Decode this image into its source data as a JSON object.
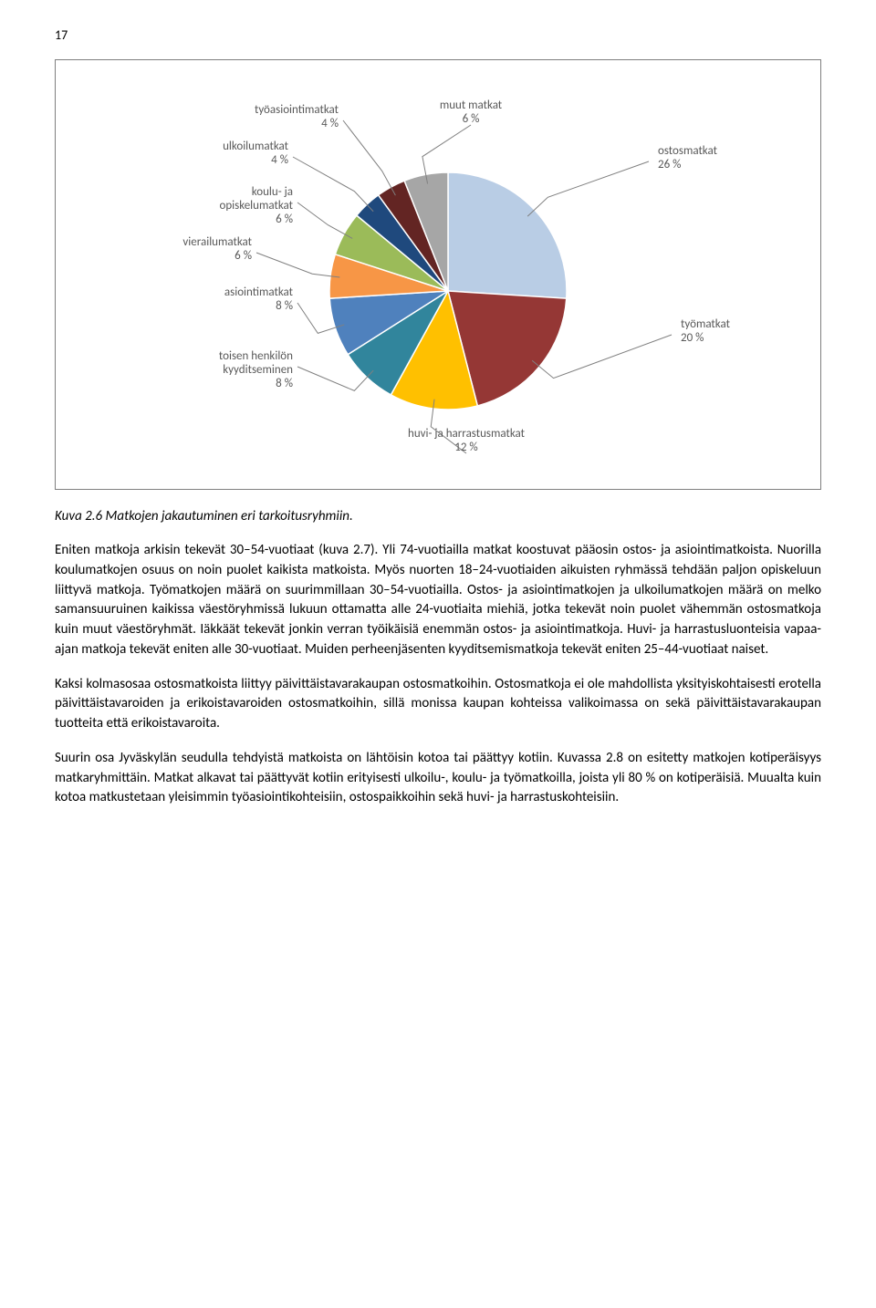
{
  "page_number": "17",
  "chart": {
    "type": "pie",
    "background_color": "#ffffff",
    "slices": [
      {
        "label_line1": "ostosmatkat",
        "label_line2": "26 %",
        "value": 26,
        "color": "#b9cde5"
      },
      {
        "label_line1": "työmatkat",
        "label_line2": "20 %",
        "value": 20,
        "color": "#953735"
      },
      {
        "label_line1": "huvi- ja harrastusmatkat",
        "label_line2": "12 %",
        "value": 12,
        "color": "#ffc000"
      },
      {
        "label_line1": "toisen henkilön",
        "label_line2": "kyyditseminen",
        "label_line3": "8 %",
        "value": 8,
        "color": "#31859c"
      },
      {
        "label_line1": "asiointimatkat",
        "label_line2": "8 %",
        "value": 8,
        "color": "#4f81bd"
      },
      {
        "label_line1": "vierailumatkat",
        "label_line2": "6 %",
        "value": 6,
        "color": "#f79646"
      },
      {
        "label_line1": "koulu- ja",
        "label_line2": "opiskelumatkat",
        "label_line3": "6 %",
        "value": 6,
        "color": "#9bbb59"
      },
      {
        "label_line1": "ulkoilumatkat",
        "label_line2": "4 %",
        "value": 4,
        "color": "#1f497d"
      },
      {
        "label_line1": "työasiointimatkat",
        "label_line2": "4 %",
        "value": 4,
        "color": "#632523"
      },
      {
        "label_line1": "muut matkat",
        "label_line2": "6 %",
        "value": 6,
        "color": "#a6a6a6"
      }
    ],
    "label_color": "#595959",
    "label_fontsize": 13,
    "leader_line_color": "#808080",
    "radius": 130,
    "start_angle_deg": -90
  },
  "caption": "Kuva 2.6 Matkojen jakautuminen eri tarkoitusryhmiin.",
  "paragraphs": [
    "Eniten matkoja arkisin tekevät 30–54-vuotiaat (kuva 2.7). Yli 74-vuotiailla matkat koostuvat pääosin ostos- ja asiointimatkoista. Nuorilla koulumatkojen osuus on noin puolet kaikista matkoista. Myös nuorten 18–24-vuotiaiden aikuisten ryhmässä tehdään paljon opiskeluun liittyvä matkoja. Työmatkojen määrä on suurimmillaan 30–54-vuotiailla. Ostos- ja asiointimatkojen ja ulkoilumatkojen määrä on melko samansuuruinen kaikissa väestöryhmissä lukuun ottamatta alle 24-vuotiaita miehiä, jotka tekevät noin puolet vähemmän ostosmatkoja kuin muut väestöryhmät. Iäkkäät tekevät jonkin verran työikäisiä enemmän ostos- ja asiointimatkoja. Huvi- ja harrastusluonteisia vapaa-ajan matkoja tekevät eniten alle 30-vuotiaat. Muiden perheenjäsenten kyyditsemismatkoja tekevät eniten 25–44-vuotiaat naiset.",
    "Kaksi kolmasosaa ostosmatkoista liittyy päivittäistavarakaupan ostosmatkoihin. Ostosmatkoja ei ole mahdollista yksityiskohtaisesti erotella päivittäistavaroiden ja erikoistavaroiden ostosmatkoihin, sillä monissa kaupan kohteissa valikoimassa on sekä päivittäistavarakaupan tuotteita että erikoistavaroita.",
    "Suurin osa Jyväskylän seudulla tehdyistä matkoista on lähtöisin kotoa tai päättyy kotiin. Kuvassa 2.8 on esitetty matkojen kotiperäisyys matkaryhmittäin. Matkat alkavat tai päättyvät kotiin erityisesti ulkoilu-, koulu- ja työmatkoilla, joista yli 80 % on kotiperäisiä. Muualta kuin kotoa matkustetaan yleisimmin työasiointikohteisiin, ostospaikkoihin sekä huvi- ja harrastuskohteisiin."
  ]
}
